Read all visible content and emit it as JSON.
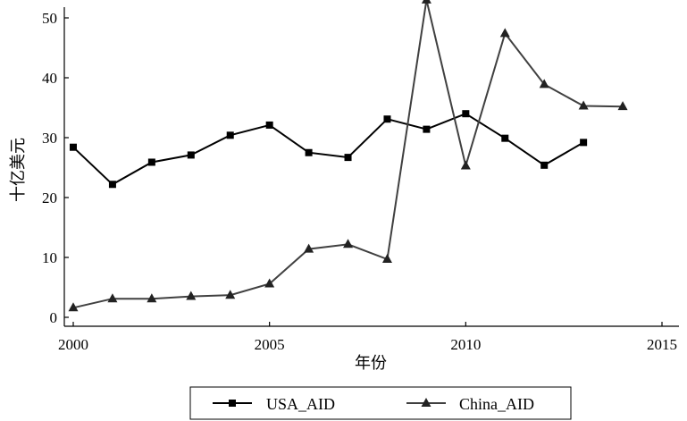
{
  "chart_data": {
    "type": "line",
    "xlabel": "年份",
    "ylabel": "十亿美元",
    "xlim": [
      2000,
      2015
    ],
    "ylim": [
      -1.5,
      55
    ],
    "xticks": [
      2000,
      2005,
      2010,
      2015
    ],
    "yticks": [
      0,
      10,
      20,
      30,
      40,
      50
    ],
    "grid": false,
    "legend_position": "bottom",
    "series": [
      {
        "name": "USA_AID",
        "marker": "square",
        "color": "#000000",
        "x": [
          2000,
          2001,
          2002,
          2003,
          2004,
          2005,
          2006,
          2007,
          2008,
          2009,
          2010,
          2011,
          2012,
          2013
        ],
        "values": [
          28.4,
          22.2,
          25.9,
          27.1,
          30.4,
          32.1,
          27.5,
          26.7,
          33.1,
          31.4,
          34.0,
          29.9,
          25.4,
          29.2
        ]
      },
      {
        "name": "China_AID",
        "marker": "triangle",
        "color": "#404040",
        "x": [
          2000,
          2001,
          2002,
          2003,
          2004,
          2005,
          2006,
          2007,
          2008,
          2009,
          2010,
          2011,
          2012,
          2013,
          2014
        ],
        "values": [
          1.6,
          3.1,
          3.1,
          3.5,
          3.7,
          5.6,
          11.4,
          12.2,
          9.7,
          53.0,
          25.3,
          47.4,
          38.9,
          35.3,
          35.2
        ]
      }
    ]
  }
}
